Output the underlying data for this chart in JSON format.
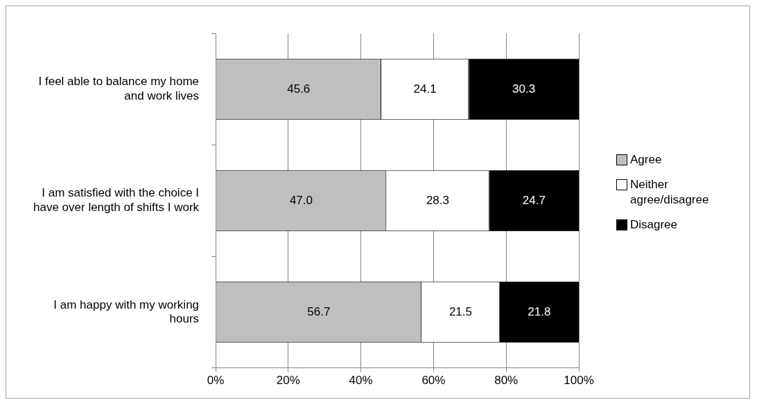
{
  "chart_data": {
    "type": "bar",
    "orientation": "horizontal",
    "stacked": true,
    "categories": [
      "I feel able to balance my home and work lives",
      "I am satisfied with the choice I have over length of shifts I work",
      "I am happy with my working hours"
    ],
    "series": [
      {
        "name": "Agree",
        "color": "#bfbfbf",
        "values": [
          45.6,
          47.0,
          56.7
        ],
        "value_labels": [
          "45.6",
          "47.0",
          "56.7"
        ]
      },
      {
        "name": "Neither agree/disagree",
        "color": "#ffffff",
        "values": [
          24.1,
          28.3,
          21.5
        ],
        "value_labels": [
          "24.1",
          "28.3",
          "21.5"
        ]
      },
      {
        "name": "Disagree",
        "color": "#000000",
        "values": [
          30.3,
          24.7,
          21.8
        ],
        "value_labels": [
          "30.3",
          "24.7",
          "21.8"
        ]
      }
    ],
    "xlim": [
      0,
      100
    ],
    "xticks": [
      {
        "value": 0,
        "label": "0%"
      },
      {
        "value": 20,
        "label": "20%"
      },
      {
        "value": 40,
        "label": "40%"
      },
      {
        "value": 60,
        "label": "60%"
      },
      {
        "value": 80,
        "label": "80%"
      },
      {
        "value": 100,
        "label": "100%"
      }
    ],
    "grid": "x",
    "legend": "right"
  }
}
